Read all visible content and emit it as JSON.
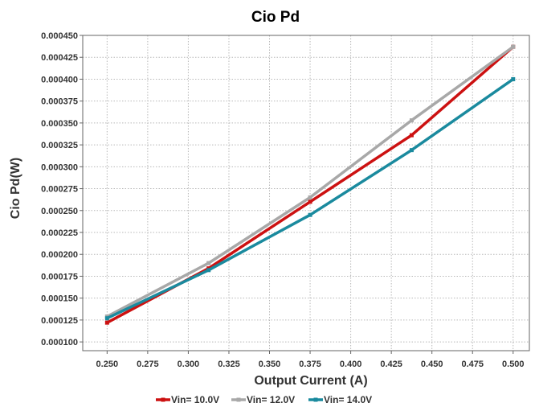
{
  "chart_data": {
    "type": "line",
    "title": "Cio Pd",
    "xlabel": "Output Current (A)",
    "ylabel": "Cio Pd(W)",
    "xlim": [
      0.235,
      0.51
    ],
    "ylim": [
      9e-05,
      0.00045
    ],
    "x_ticks": [
      "0.250",
      "0.275",
      "0.300",
      "0.325",
      "0.350",
      "0.375",
      "0.400",
      "0.425",
      "0.450",
      "0.475",
      "0.500"
    ],
    "y_ticks": [
      "0.000100",
      "0.000125",
      "0.000150",
      "0.000175",
      "0.000200",
      "0.000225",
      "0.000250",
      "0.000275",
      "0.000300",
      "0.000325",
      "0.000350",
      "0.000375",
      "0.000400",
      "0.000425",
      "0.000450"
    ],
    "grid": true,
    "legend_position": "bottom",
    "series": [
      {
        "name": "Vin= 10.0V",
        "color": "#cc1111",
        "x": [
          0.25,
          0.3125,
          0.375,
          0.4375,
          0.5
        ],
        "y": [
          0.000122,
          0.000184,
          0.00026,
          0.000336,
          0.000437
        ]
      },
      {
        "name": "Vin= 12.0V",
        "color": "#a8a8a8",
        "x": [
          0.25,
          0.3125,
          0.375,
          0.4375,
          0.5
        ],
        "y": [
          0.000129,
          0.00019,
          0.000265,
          0.000353,
          0.000437
        ]
      },
      {
        "name": "Vin= 14.0V",
        "color": "#1a8a9e",
        "x": [
          0.25,
          0.3125,
          0.375,
          0.4375,
          0.5
        ],
        "y": [
          0.000127,
          0.000182,
          0.000245,
          0.000319,
          0.0004
        ]
      }
    ]
  }
}
